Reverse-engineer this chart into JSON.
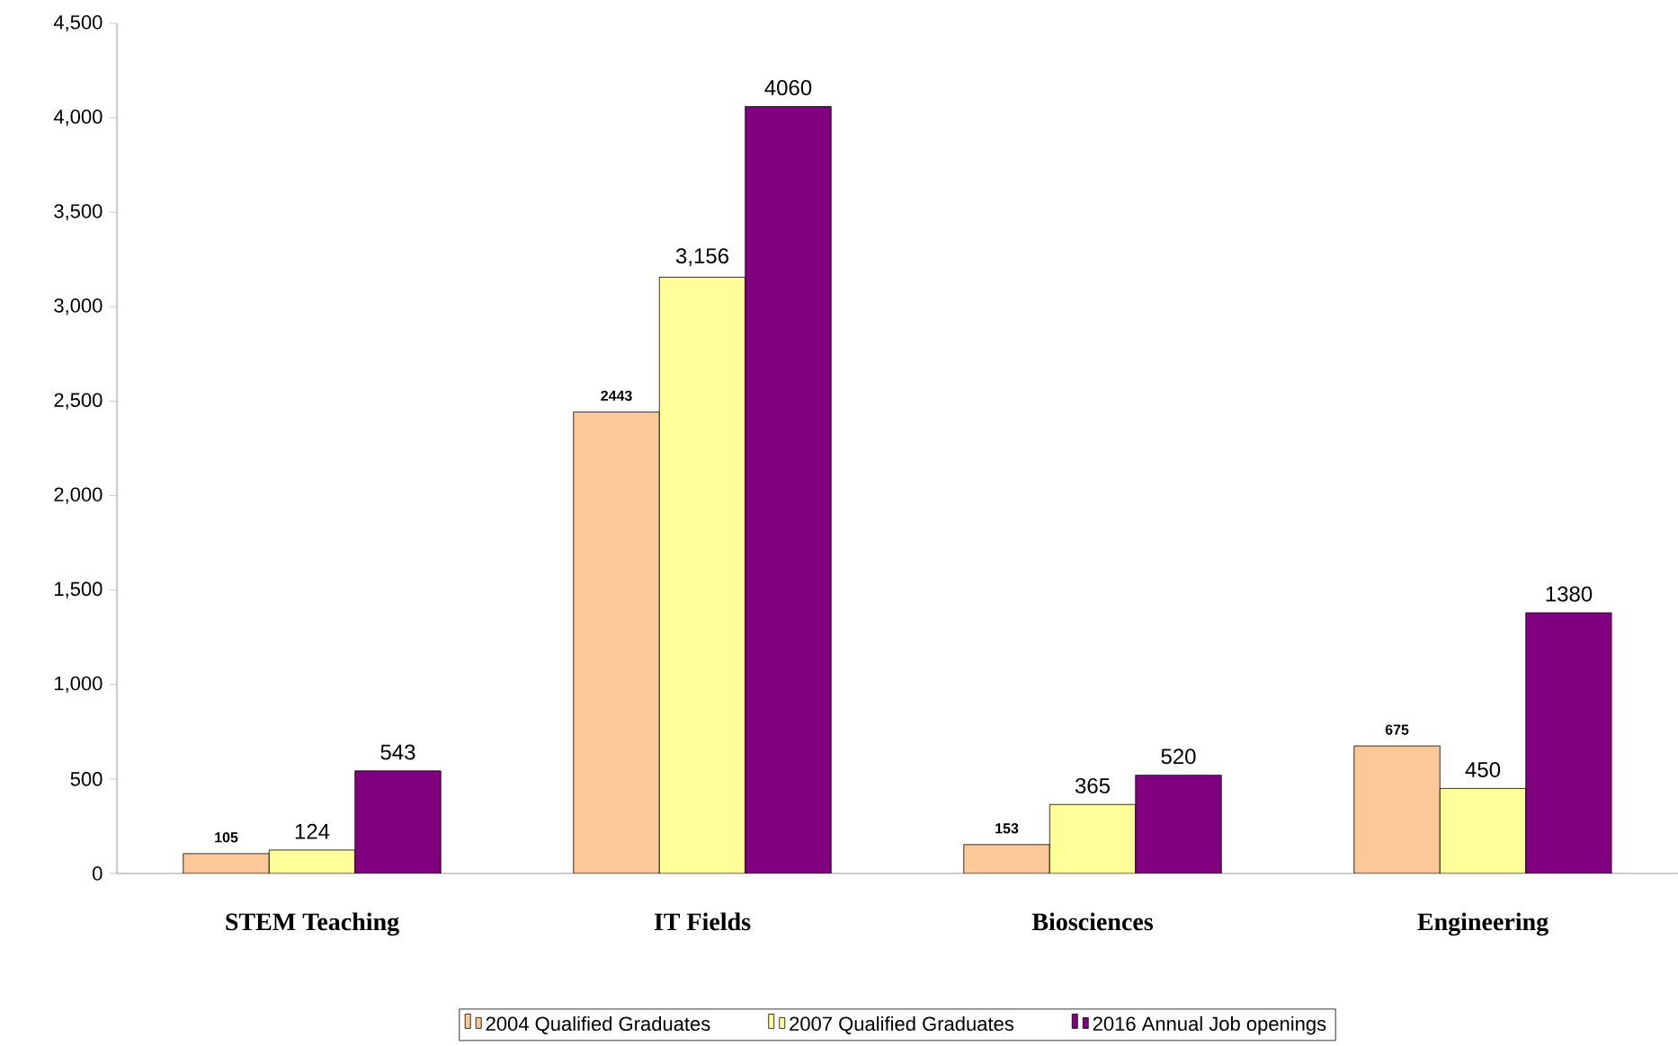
{
  "chart_data": {
    "type": "bar",
    "categories": [
      "STEM Teaching",
      "IT Fields",
      "Biosciences",
      "Engineering"
    ],
    "series": [
      {
        "name": "2004 Qualified Graduates",
        "color": "#fcc898",
        "values": [
          105,
          2443,
          153,
          675
        ],
        "value_labels": [
          "105",
          "2443",
          "153",
          "675"
        ]
      },
      {
        "name": "2007 Qualified Graduates",
        "color": "#ffff99",
        "values": [
          124,
          3156,
          365,
          450
        ],
        "value_labels": [
          "124",
          "3,156",
          "365",
          "450"
        ]
      },
      {
        "name": "2016 Annual Job openings",
        "color": "#800080",
        "values": [
          543,
          4060,
          520,
          1380
        ],
        "value_labels": [
          "543",
          "4060",
          "520",
          "1380"
        ]
      }
    ],
    "ylim": [
      0,
      4500
    ],
    "yticks": [
      {
        "value": 0,
        "label": "0"
      },
      {
        "value": 500,
        "label": "500"
      },
      {
        "value": 1000,
        "label": "1,000"
      },
      {
        "value": 1500,
        "label": "1,500"
      },
      {
        "value": 2000,
        "label": "2,000"
      },
      {
        "value": 2500,
        "label": "2,500"
      },
      {
        "value": 3000,
        "label": "3,000"
      },
      {
        "value": 3500,
        "label": "3,500"
      },
      {
        "value": 4000,
        "label": "4,000"
      },
      {
        "value": 4500,
        "label": "4,500"
      }
    ],
    "grid": false,
    "legend": "bottom"
  }
}
